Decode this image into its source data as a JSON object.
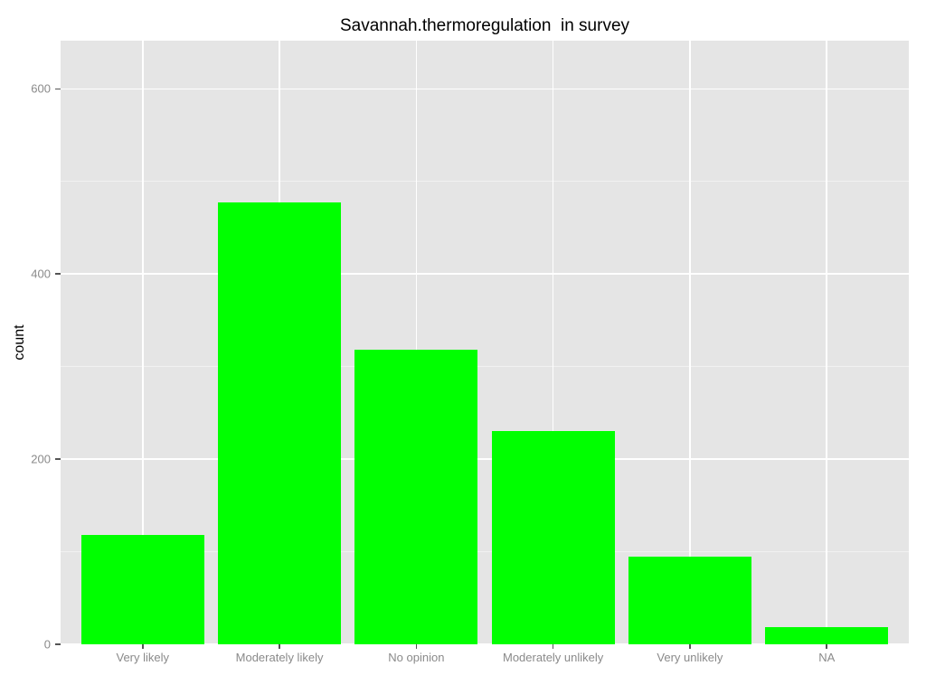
{
  "chart_data": {
    "type": "bar",
    "title": "Savannah.thermoregulation  in survey",
    "xlabel": "",
    "ylabel": "count",
    "categories": [
      "Very likely",
      "Moderately likely",
      "No opinion",
      "Moderately unlikely",
      "Very unlikely",
      "NA"
    ],
    "values": [
      118,
      477,
      318,
      230,
      95,
      19
    ],
    "yticks_major": [
      0,
      200,
      400,
      600
    ],
    "yticks_minor": [
      100,
      300,
      500
    ],
    "ylim": [
      0,
      652
    ],
    "legend": "none",
    "grid": "on",
    "style": "ggplot2-grey",
    "colors": {
      "bar_fill": "#00ff00",
      "panel_background": "#e5e5e5",
      "grid_major": "#ffffff",
      "grid_minor": "#f1f1f1",
      "axis_text": "#8a8a8a",
      "tick_marks": "#555555",
      "title_text": "#000000",
      "figure_background": "#ffffff"
    }
  }
}
